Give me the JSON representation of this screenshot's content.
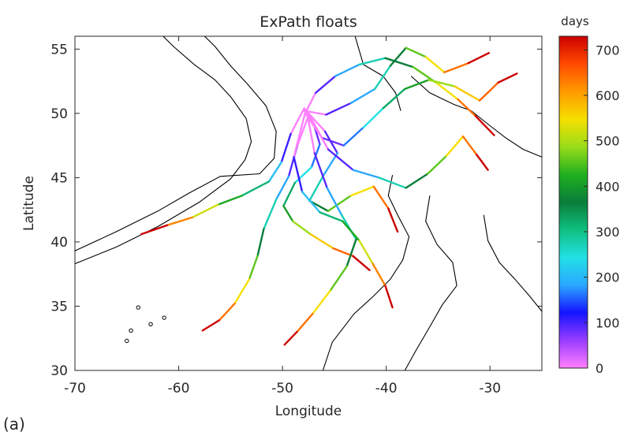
{
  "panel_label": "(a)",
  "chart_data": {
    "type": "line",
    "title": "ExPath floats",
    "xlabel": "Longitude",
    "ylabel": "Latitude",
    "xlim": [
      -70,
      -25
    ],
    "ylim": [
      30,
      56
    ],
    "xticks": [
      -70,
      -60,
      -50,
      -40,
      -30
    ],
    "yticks": [
      30,
      35,
      40,
      45,
      50,
      55
    ],
    "colorbar": {
      "label": "days",
      "range": [
        0,
        730
      ],
      "ticks": [
        0,
        100,
        200,
        300,
        400,
        500,
        600,
        700
      ],
      "colormap": [
        "#ff80ff",
        "#9a3cff",
        "#1414ff",
        "#2aa8ff",
        "#22e0e6",
        "#0fbf80",
        "#0a7d3a",
        "#1fb01f",
        "#9adc1a",
        "#f5e000",
        "#ff9a00",
        "#ff4a00",
        "#cc0000"
      ]
    },
    "series": [
      {
        "points": [
          [
            -47.8,
            50.3
          ],
          [
            -47.0,
            49.2
          ],
          [
            -46.4,
            47.6
          ],
          [
            -47.2,
            45.8
          ],
          [
            -48.8,
            44.6
          ],
          [
            -49.9,
            42.8
          ],
          [
            -49.0,
            41.6
          ],
          [
            -47.3,
            40.6
          ],
          [
            -45.1,
            39.5
          ],
          [
            -43.2,
            38.9
          ],
          [
            -41.6,
            37.8
          ]
        ]
      },
      {
        "points": [
          [
            -47.6,
            50.1
          ],
          [
            -45.9,
            48.6
          ],
          [
            -44.7,
            46.9
          ],
          [
            -46.1,
            45.1
          ],
          [
            -47.4,
            43.2
          ],
          [
            -45.6,
            42.4
          ],
          [
            -43.4,
            43.6
          ],
          [
            -41.2,
            44.3
          ],
          [
            -39.8,
            42.6
          ],
          [
            -38.9,
            40.8
          ]
        ]
      },
      {
        "points": [
          [
            -47.9,
            50.4
          ],
          [
            -49.2,
            48.4
          ],
          [
            -50.1,
            46.2
          ],
          [
            -51.3,
            44.7
          ],
          [
            -53.9,
            43.6
          ],
          [
            -56.2,
            42.9
          ],
          [
            -58.7,
            41.9
          ],
          [
            -61.1,
            41.3
          ],
          [
            -63.6,
            40.6
          ]
        ]
      },
      {
        "points": [
          [
            -47.7,
            50.2
          ],
          [
            -46.8,
            51.6
          ],
          [
            -44.9,
            52.9
          ],
          [
            -42.6,
            53.8
          ],
          [
            -40.1,
            54.3
          ],
          [
            -37.4,
            53.6
          ],
          [
            -35.2,
            52.4
          ],
          [
            -33.1,
            51.1
          ],
          [
            -31.4,
            49.8
          ],
          [
            -29.6,
            48.3
          ]
        ]
      },
      {
        "points": [
          [
            -47.8,
            50.0
          ],
          [
            -46.2,
            48.1
          ],
          [
            -44.1,
            47.5
          ],
          [
            -42.2,
            48.9
          ],
          [
            -40.3,
            50.4
          ],
          [
            -38.2,
            51.9
          ],
          [
            -35.9,
            52.6
          ],
          [
            -33.4,
            52.1
          ],
          [
            -31.0,
            51.0
          ],
          [
            -29.2,
            52.4
          ],
          [
            -27.4,
            53.1
          ]
        ]
      },
      {
        "points": [
          [
            -47.5,
            49.8
          ],
          [
            -48.6,
            47.4
          ],
          [
            -49.4,
            45.1
          ],
          [
            -50.6,
            43.3
          ],
          [
            -51.8,
            41.0
          ],
          [
            -52.4,
            38.9
          ],
          [
            -53.2,
            37.1
          ],
          [
            -54.6,
            35.2
          ],
          [
            -56.1,
            33.9
          ],
          [
            -57.7,
            33.1
          ]
        ]
      },
      {
        "points": [
          [
            -47.6,
            49.9
          ],
          [
            -46.9,
            46.9
          ],
          [
            -45.7,
            44.2
          ],
          [
            -44.3,
            42.1
          ],
          [
            -42.9,
            40.2
          ],
          [
            -43.8,
            38.1
          ],
          [
            -45.4,
            36.2
          ],
          [
            -47.1,
            34.4
          ],
          [
            -48.6,
            33.0
          ],
          [
            -49.8,
            32.0
          ]
        ]
      },
      {
        "points": [
          [
            -47.9,
            50.2
          ],
          [
            -45.8,
            49.9
          ],
          [
            -43.4,
            50.8
          ],
          [
            -41.1,
            51.9
          ],
          [
            -39.6,
            53.7
          ],
          [
            -38.1,
            55.1
          ],
          [
            -36.2,
            54.4
          ],
          [
            -34.4,
            53.2
          ],
          [
            -32.1,
            53.9
          ],
          [
            -30.1,
            54.7
          ]
        ]
      },
      {
        "points": [
          [
            -47.7,
            50.3
          ],
          [
            -45.6,
            47.2
          ],
          [
            -43.2,
            45.6
          ],
          [
            -40.7,
            45.0
          ],
          [
            -38.1,
            44.2
          ],
          [
            -36.0,
            45.3
          ],
          [
            -34.2,
            46.7
          ],
          [
            -32.6,
            48.2
          ],
          [
            -31.3,
            46.8
          ],
          [
            -30.2,
            45.6
          ]
        ]
      },
      {
        "points": [
          [
            -47.8,
            50.1
          ],
          [
            -48.9,
            46.6
          ],
          [
            -48.1,
            43.9
          ],
          [
            -46.4,
            42.3
          ],
          [
            -44.2,
            41.6
          ],
          [
            -42.6,
            40.1
          ],
          [
            -41.3,
            38.3
          ],
          [
            -40.1,
            36.6
          ],
          [
            -39.4,
            34.9
          ]
        ]
      }
    ]
  }
}
